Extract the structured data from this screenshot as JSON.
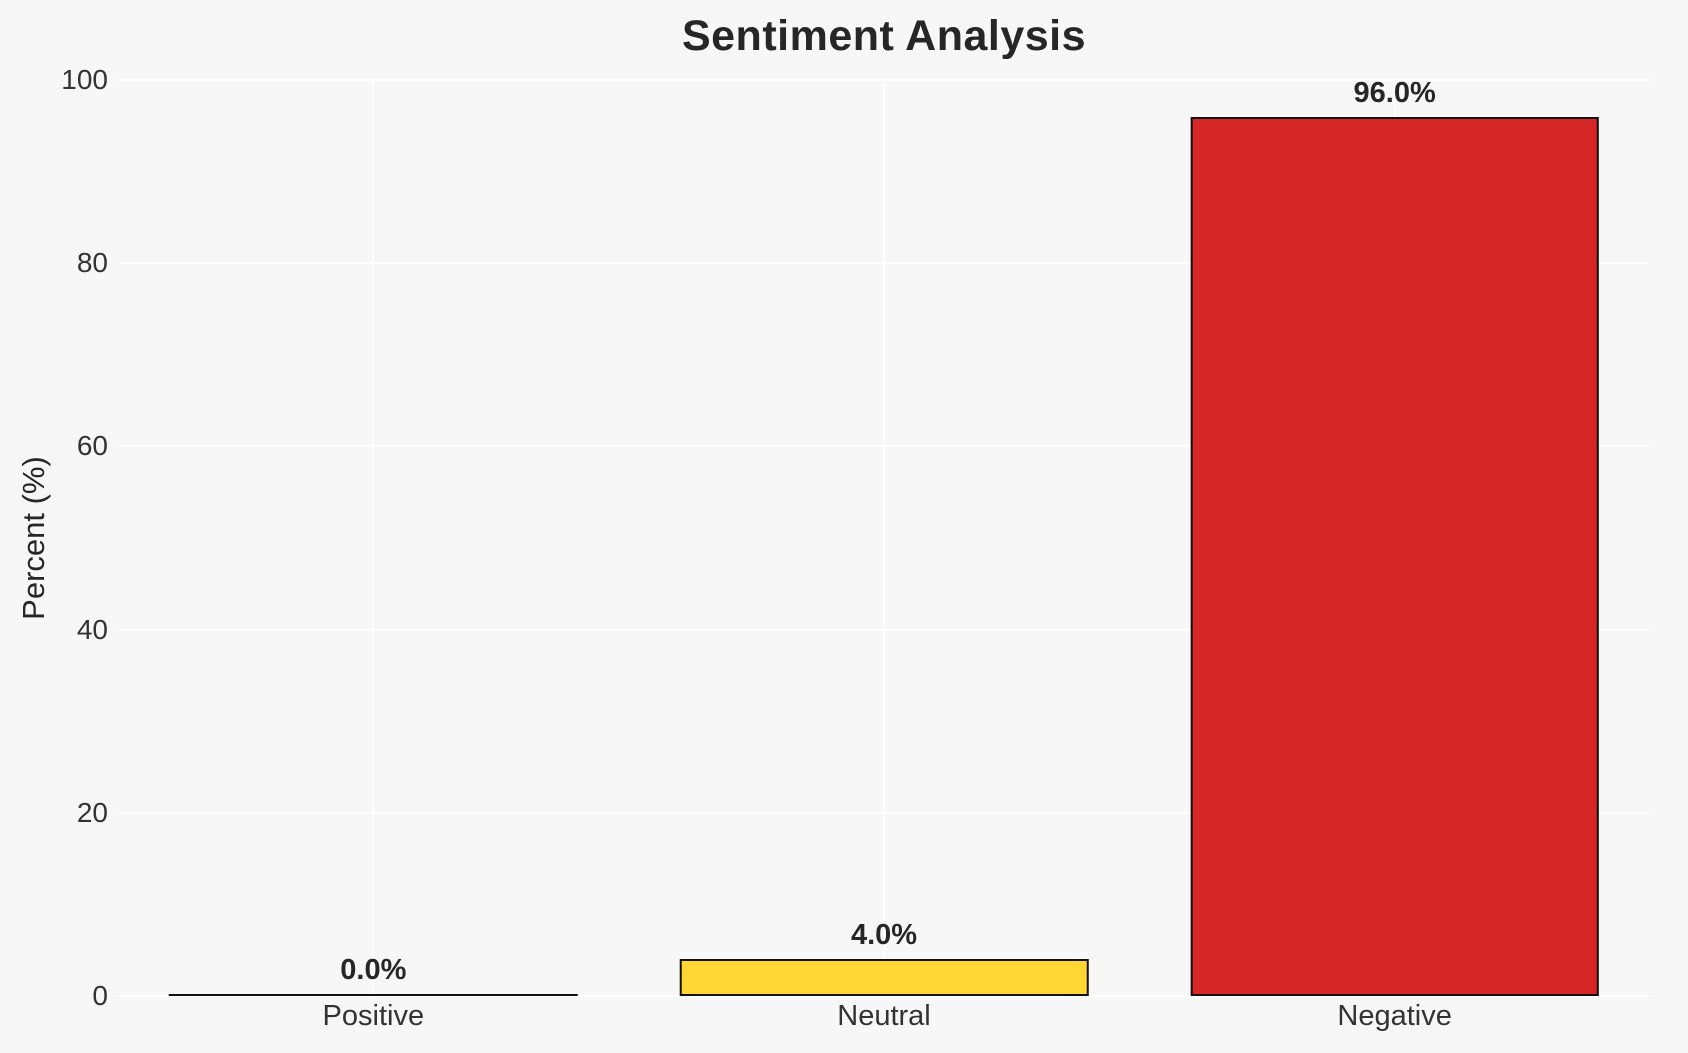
{
  "chart_data": {
    "type": "bar",
    "title": "Sentiment Analysis",
    "xlabel": "",
    "ylabel": "Percent (%)",
    "categories": [
      "Positive",
      "Neutral",
      "Negative"
    ],
    "values": [
      0.0,
      4.0,
      96.0
    ],
    "value_labels": [
      "0.0%",
      "4.0%",
      "96.0%"
    ],
    "ylim": [
      0,
      100
    ],
    "yticks": [
      0,
      20,
      40,
      60,
      80,
      100
    ],
    "grid": "on",
    "legend": "none",
    "bar_colors": [
      "#ffffff",
      "#ffd633",
      "#d62728"
    ],
    "bar_edge_color": "#111111",
    "background_color": "#f7f7f7",
    "gridline_color": "#ffffff",
    "text_color": "#262626",
    "tick_text_color": "#333333"
  }
}
